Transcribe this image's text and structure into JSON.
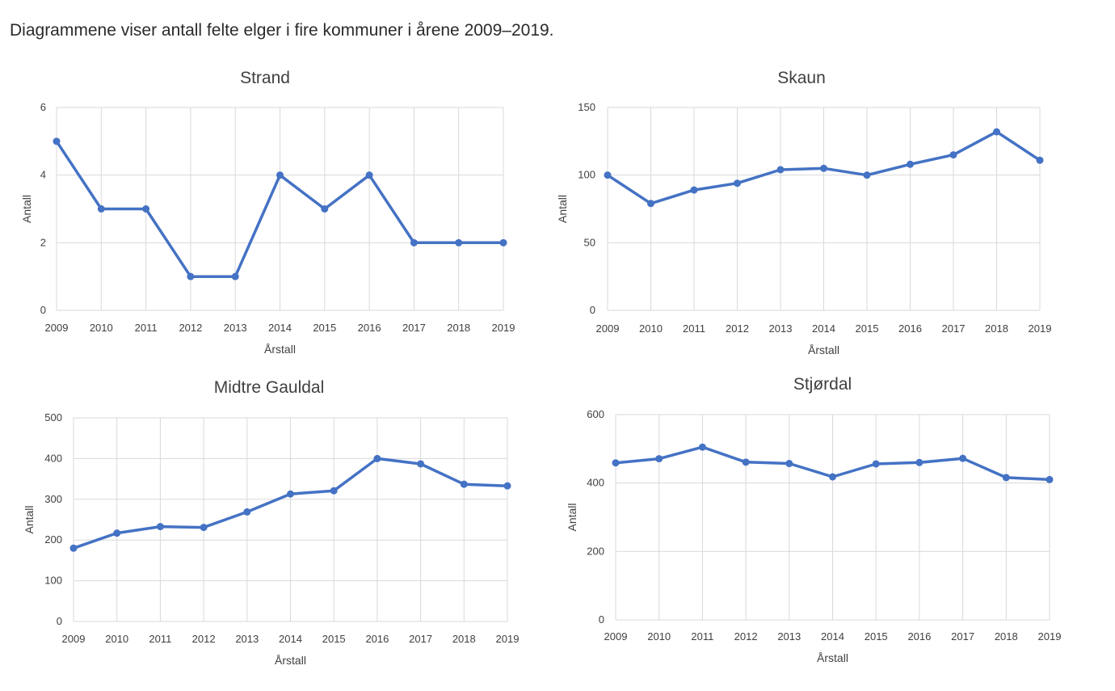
{
  "intro_text": "Diagrammene viser antall felte elger i fire kommuner i årene 2009–2019.",
  "series_color": "#4472c4",
  "grid_color": "#d9d9d9",
  "chart_data": [
    {
      "type": "line",
      "title": "Strand",
      "xlabel": "Årstall",
      "ylabel": "Antall",
      "x": [
        "2009",
        "2010",
        "2011",
        "2012",
        "2013",
        "2014",
        "2015",
        "2016",
        "2017",
        "2018",
        "2019"
      ],
      "values": [
        5,
        3,
        3,
        1,
        1,
        4,
        3,
        4,
        2,
        2,
        2
      ],
      "ylim": [
        0,
        6
      ],
      "yticks": [
        0,
        2,
        4,
        6
      ],
      "grid": true,
      "legend": "none"
    },
    {
      "type": "line",
      "title": "Skaun",
      "xlabel": "Årstall",
      "ylabel": "Antall",
      "x": [
        "2009",
        "2010",
        "2011",
        "2012",
        "2013",
        "2014",
        "2015",
        "2016",
        "2017",
        "2018",
        "2019"
      ],
      "values": [
        100,
        79,
        89,
        94,
        104,
        105,
        100,
        108,
        115,
        132,
        111
      ],
      "ylim": [
        0,
        150
      ],
      "yticks": [
        0,
        50,
        100,
        150
      ],
      "grid": true,
      "legend": "none"
    },
    {
      "type": "line",
      "title": "Midtre Gauldal",
      "xlabel": "Årstall",
      "ylabel": "Antall",
      "x": [
        "2009",
        "2010",
        "2011",
        "2012",
        "2013",
        "2014",
        "2015",
        "2016",
        "2017",
        "2018",
        "2019"
      ],
      "values": [
        180,
        217,
        233,
        231,
        269,
        313,
        321,
        400,
        387,
        337,
        333
      ],
      "ylim": [
        0,
        500
      ],
      "yticks": [
        0,
        100,
        200,
        300,
        400,
        500
      ],
      "grid": true,
      "legend": "none"
    },
    {
      "type": "line",
      "title": "Stjørdal",
      "xlabel": "Årstall",
      "ylabel": "Antall",
      "x": [
        "2009",
        "2010",
        "2011",
        "2012",
        "2013",
        "2014",
        "2015",
        "2016",
        "2017",
        "2018",
        "2019"
      ],
      "values": [
        459,
        471,
        505,
        461,
        457,
        418,
        456,
        460,
        472,
        416,
        410
      ],
      "ylim": [
        0,
        600
      ],
      "yticks": [
        0,
        200,
        400,
        600
      ],
      "grid": true,
      "legend": "none"
    }
  ]
}
